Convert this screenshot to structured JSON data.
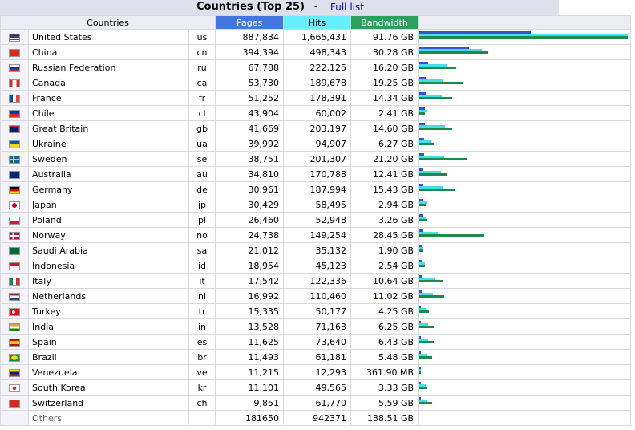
{
  "header": {
    "title": "Countries (Top 25)",
    "separator": "-",
    "full_list_link": "Full list"
  },
  "columns": {
    "countries": "Countries",
    "pages": "Pages",
    "hits": "Hits",
    "bandwidth": "Bandwidth"
  },
  "colors": {
    "pages": "#4477dd",
    "hits": "#66f0ff",
    "bandwidth": "#2e9e5e"
  },
  "rows": [
    {
      "name": "United States",
      "code": "us",
      "pages": "887,834",
      "hits": "1,665,431",
      "bandwidth": "91.76 GB",
      "flag": "flag-us-icon",
      "pv": 887834,
      "hv": 1665431,
      "bv": 91.76
    },
    {
      "name": "China",
      "code": "cn",
      "pages": "394,394",
      "hits": "498,343",
      "bandwidth": "30.28 GB",
      "flag": "flag-cn-icon",
      "pv": 394394,
      "hv": 498343,
      "bv": 30.28
    },
    {
      "name": "Russian Federation",
      "code": "ru",
      "pages": "67,788",
      "hits": "222,125",
      "bandwidth": "16.20 GB",
      "flag": "flag-ru-icon",
      "pv": 67788,
      "hv": 222125,
      "bv": 16.2
    },
    {
      "name": "Canada",
      "code": "ca",
      "pages": "53,730",
      "hits": "189,678",
      "bandwidth": "19.25 GB",
      "flag": "flag-ca-icon",
      "pv": 53730,
      "hv": 189678,
      "bv": 19.25
    },
    {
      "name": "France",
      "code": "fr",
      "pages": "51,252",
      "hits": "178,391",
      "bandwidth": "14.34 GB",
      "flag": "flag-fr-icon",
      "pv": 51252,
      "hv": 178391,
      "bv": 14.34
    },
    {
      "name": "Chile",
      "code": "cl",
      "pages": "43,904",
      "hits": "60,002",
      "bandwidth": "2.41 GB",
      "flag": "flag-cl-icon",
      "pv": 43904,
      "hv": 60002,
      "bv": 2.41
    },
    {
      "name": "Great Britain",
      "code": "gb",
      "pages": "41,669",
      "hits": "203,197",
      "bandwidth": "14.60 GB",
      "flag": "flag-gb-icon",
      "pv": 41669,
      "hv": 203197,
      "bv": 14.6
    },
    {
      "name": "Ukraine",
      "code": "ua",
      "pages": "39,992",
      "hits": "94,907",
      "bandwidth": "6.27 GB",
      "flag": "flag-ua-icon",
      "pv": 39992,
      "hv": 94907,
      "bv": 6.27
    },
    {
      "name": "Sweden",
      "code": "se",
      "pages": "38,751",
      "hits": "201,307",
      "bandwidth": "21.20 GB",
      "flag": "flag-se-icon",
      "pv": 38751,
      "hv": 201307,
      "bv": 21.2
    },
    {
      "name": "Australia",
      "code": "au",
      "pages": "34,810",
      "hits": "170,788",
      "bandwidth": "12.41 GB",
      "flag": "flag-au-icon",
      "pv": 34810,
      "hv": 170788,
      "bv": 12.41
    },
    {
      "name": "Germany",
      "code": "de",
      "pages": "30,961",
      "hits": "187,994",
      "bandwidth": "15.43 GB",
      "flag": "flag-de-icon",
      "pv": 30961,
      "hv": 187994,
      "bv": 15.43
    },
    {
      "name": "Japan",
      "code": "jp",
      "pages": "30,429",
      "hits": "58,495",
      "bandwidth": "2.94 GB",
      "flag": "flag-jp-icon",
      "pv": 30429,
      "hv": 58495,
      "bv": 2.94
    },
    {
      "name": "Poland",
      "code": "pl",
      "pages": "26,460",
      "hits": "52,948",
      "bandwidth": "3.26 GB",
      "flag": "flag-pl-icon",
      "pv": 26460,
      "hv": 52948,
      "bv": 3.26
    },
    {
      "name": "Norway",
      "code": "no",
      "pages": "24,738",
      "hits": "149,254",
      "bandwidth": "28.45 GB",
      "flag": "flag-no-icon",
      "pv": 24738,
      "hv": 149254,
      "bv": 28.45
    },
    {
      "name": "Saudi Arabia",
      "code": "sa",
      "pages": "21,012",
      "hits": "35,132",
      "bandwidth": "1.90 GB",
      "flag": "flag-sa-icon",
      "pv": 21012,
      "hv": 35132,
      "bv": 1.9
    },
    {
      "name": "Indonesia",
      "code": "id",
      "pages": "18,954",
      "hits": "45,123",
      "bandwidth": "2.54 GB",
      "flag": "flag-id-icon",
      "pv": 18954,
      "hv": 45123,
      "bv": 2.54
    },
    {
      "name": "Italy",
      "code": "it",
      "pages": "17,542",
      "hits": "122,336",
      "bandwidth": "10.64 GB",
      "flag": "flag-it-icon",
      "pv": 17542,
      "hv": 122336,
      "bv": 10.64
    },
    {
      "name": "Netherlands",
      "code": "nl",
      "pages": "16,992",
      "hits": "110,460",
      "bandwidth": "11.02 GB",
      "flag": "flag-nl-icon",
      "pv": 16992,
      "hv": 110460,
      "bv": 11.02
    },
    {
      "name": "Turkey",
      "code": "tr",
      "pages": "15,335",
      "hits": "50,177",
      "bandwidth": "4.25 GB",
      "flag": "flag-tr-icon",
      "pv": 15335,
      "hv": 50177,
      "bv": 4.25
    },
    {
      "name": "India",
      "code": "in",
      "pages": "13,528",
      "hits": "71,163",
      "bandwidth": "6.25 GB",
      "flag": "flag-in-icon",
      "pv": 13528,
      "hv": 71163,
      "bv": 6.25
    },
    {
      "name": "Spain",
      "code": "es",
      "pages": "11,625",
      "hits": "73,640",
      "bandwidth": "6.43 GB",
      "flag": "flag-es-icon",
      "pv": 11625,
      "hv": 73640,
      "bv": 6.43
    },
    {
      "name": "Brazil",
      "code": "br",
      "pages": "11,493",
      "hits": "61,181",
      "bandwidth": "5.48 GB",
      "flag": "flag-br-icon",
      "pv": 11493,
      "hv": 61181,
      "bv": 5.48
    },
    {
      "name": "Venezuela",
      "code": "ve",
      "pages": "11,215",
      "hits": "12,293",
      "bandwidth": "361.90 MB",
      "flag": "flag-ve-icon",
      "pv": 11215,
      "hv": 12293,
      "bv": 0.3534
    },
    {
      "name": "South Korea",
      "code": "kr",
      "pages": "11,101",
      "hits": "49,565",
      "bandwidth": "3.33 GB",
      "flag": "flag-kr-icon",
      "pv": 11101,
      "hv": 49565,
      "bv": 3.33
    },
    {
      "name": "Switzerland",
      "code": "ch",
      "pages": "9,851",
      "hits": "61,770",
      "bandwidth": "5.59 GB",
      "flag": "flag-ch-icon",
      "pv": 9851,
      "hv": 61770,
      "bv": 5.59
    }
  ],
  "others": {
    "label": "Others",
    "pages": "181650",
    "hits": "942371",
    "bandwidth": "138.51 GB"
  }
}
